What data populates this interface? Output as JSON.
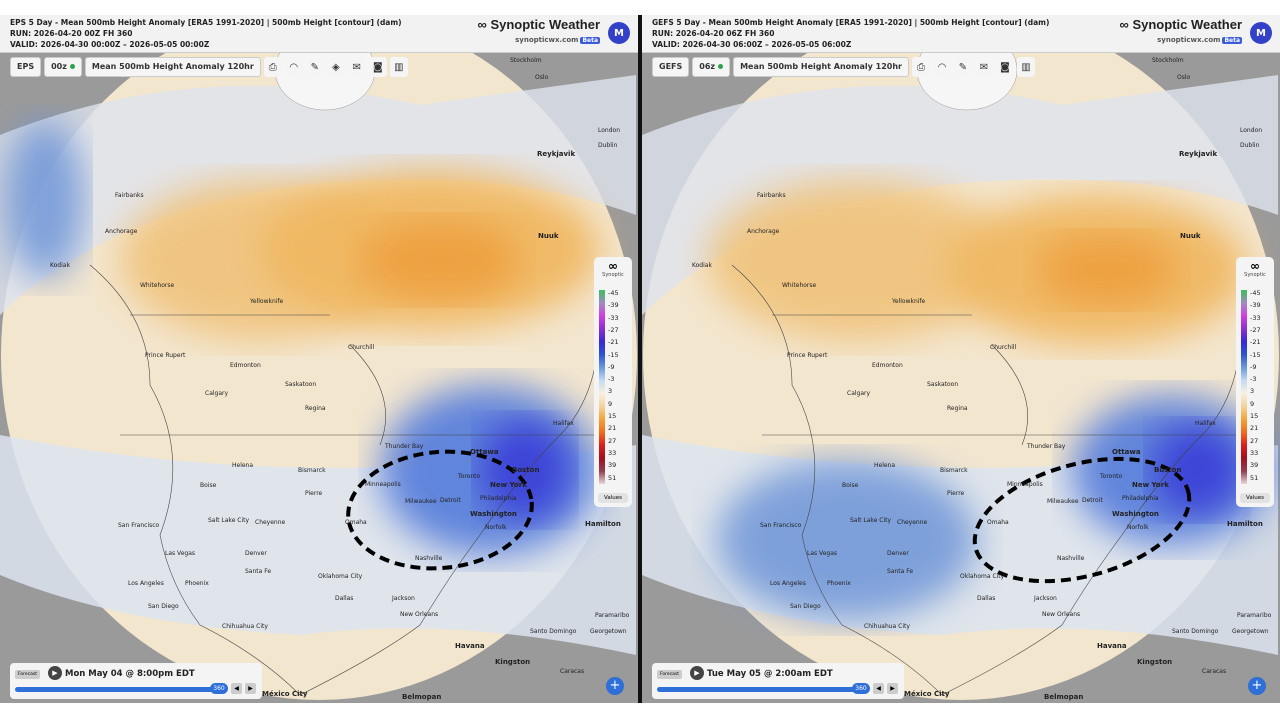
{
  "panels": [
    {
      "title": "EPS 5 Day - Mean 500mb Height Anomaly [ERA5 1991-2020] | 500mb Height [contour] (dam)",
      "run": "RUN: 2026-04-20 00Z FH 360",
      "valid": "VALID: 2026-04-30 00:00Z – 2026-05-05 00:00Z",
      "model": "EPS",
      "cycle": "00z",
      "product": "Mean 500mb Height Anomaly 120hr",
      "time": "Mon May 04 @ 8:00pm EDT",
      "fh": "360"
    },
    {
      "title": "GEFS 5 Day - Mean 500mb Height Anomaly [ERA5 1991-2020] | 500mb Height [contour] (dam)",
      "run": "RUN: 2026-04-20 06Z FH 360",
      "valid": "VALID: 2026-04-30 06:00Z – 2026-05-05 06:00Z",
      "model": "GEFS",
      "cycle": "06z",
      "product": "Mean 500mb Height Anomaly 120hr",
      "time": "Tue May 05 @ 2:00am EDT",
      "fh": "360"
    }
  ],
  "brand": {
    "name": "Synoptic Weather",
    "site": "synopticwx.com",
    "beta": "Beta",
    "avatar": "M",
    "legend_name": "Synoptic"
  },
  "player": {
    "forecast_label": "Forecast"
  },
  "legend": {
    "ticks": [
      "-45",
      "-39",
      "-33",
      "-27",
      "-21",
      "-15",
      "-9",
      "-3",
      "3",
      "9",
      "15",
      "21",
      "27",
      "33",
      "39",
      "51"
    ],
    "values_button": "Values"
  },
  "toolbar_icons": [
    "print-icon",
    "gauge-icon",
    "pencil-icon",
    "layers-icon",
    "envelope-icon",
    "camera-icon",
    "map-icon"
  ],
  "cities": [
    "Fairbanks",
    "Anchorage",
    "Kodiak",
    "Whitehorse",
    "Yellowknife",
    "Churchill",
    "Prince Rupert",
    "Edmonton",
    "Calgary",
    "Saskatoon",
    "Regina",
    "Thunder Bay",
    "Ottawa",
    "Halifax",
    "Nuuk",
    "Reykjavik",
    "Helena",
    "Bismarck",
    "Minneapolis",
    "Boise",
    "Pierre",
    "Milwaukee",
    "Detroit",
    "Toronto",
    "Boston",
    "New York",
    "Philadelphia",
    "Washington",
    "Norfolk",
    "Hamilton",
    "Salt Lake City",
    "Cheyenne",
    "Omaha",
    "San Francisco",
    "Denver",
    "Nashville",
    "Las Vegas",
    "Los Angeles",
    "San Diego",
    "Phoenix",
    "Santa Fe",
    "Oklahoma City",
    "Dallas",
    "Jackson",
    "New Orleans",
    "Chihuahua City",
    "Havana",
    "Santo Domingo",
    "Kingston",
    "Caracas",
    "Georgetown",
    "Paramaribo",
    "México City",
    "Belmopan",
    "Stockholm",
    "Oslo",
    "London",
    "Dublin"
  ],
  "colors": {
    "positive_anomaly": "#f0b862",
    "negative_anomaly": "#3a55d8",
    "accent": "#2f6fd8"
  }
}
